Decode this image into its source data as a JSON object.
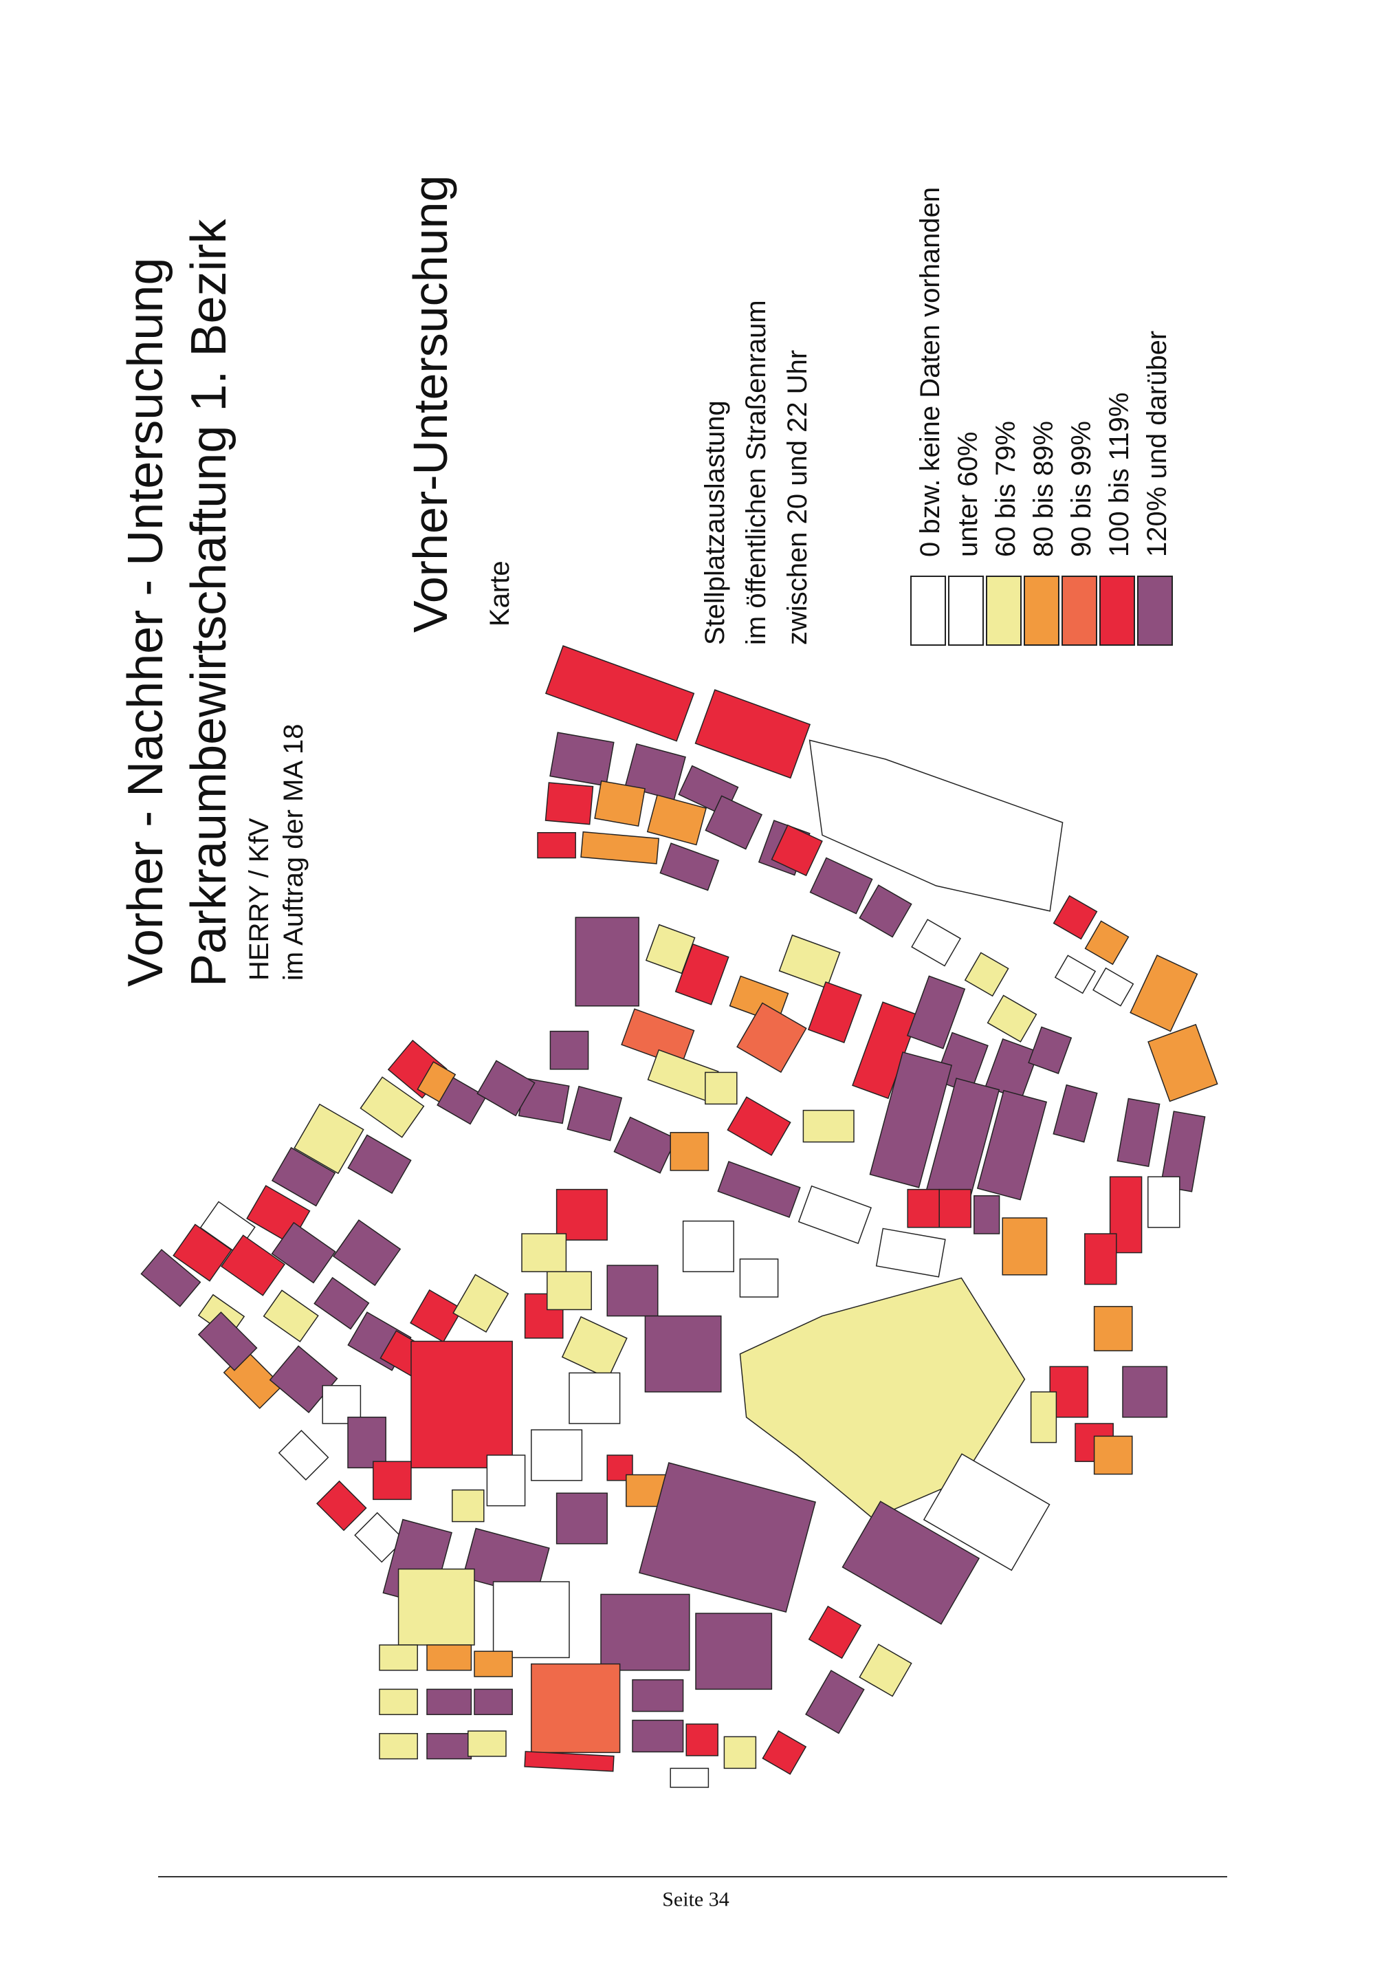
{
  "header": {
    "title": "Vorher - Nachher - Untersuchung",
    "subtitle": "Parkraumbewirtschaftung 1. Bezirk",
    "author": "HERRY / KfV",
    "client": "im Auftrag der MA 18"
  },
  "section": {
    "title": "Vorher-Untersuchung",
    "subtitle": "Karte"
  },
  "legend": {
    "title_lines": [
      "Stellplatzauslastung",
      "im öffentlichen Straßenraum",
      "zwischen 20 und 22 Uhr"
    ],
    "items": [
      {
        "label": "0 bzw. keine Daten vorhanden",
        "color": "#ffffff"
      },
      {
        "label": "unter 60%",
        "color": "#ffffff"
      },
      {
        "label": "60 bis 79%",
        "color": "#f1ec9a"
      },
      {
        "label": "80 bis 89%",
        "color": "#f29a3e"
      },
      {
        "label": "90 bis 99%",
        "color": "#ef6a4a"
      },
      {
        "label": "100 bis 119%",
        "color": "#e8283c"
      },
      {
        "label": "120% und darüber",
        "color": "#8e4f7e"
      }
    ]
  },
  "footer": {
    "page": "Seite 34"
  }
}
